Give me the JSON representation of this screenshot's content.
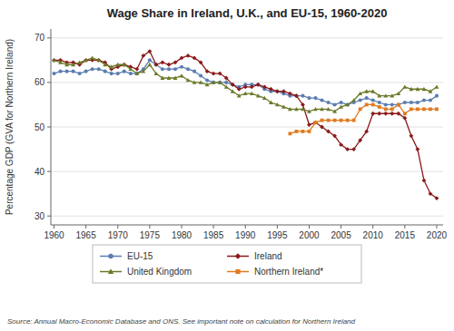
{
  "chart_data": {
    "type": "line",
    "title": "Wage Share in Ireland, U.K., and EU-15, 1960-2020",
    "y_label": "Percentage GDP (GVA for Northern Ireland)",
    "source": "Source: Annual Macro-Economic Database and ONS. See important note on calculation for Northern Ireland",
    "x": [
      1960,
      1961,
      1962,
      1963,
      1964,
      1965,
      1966,
      1967,
      1968,
      1969,
      1970,
      1971,
      1972,
      1973,
      1974,
      1975,
      1976,
      1977,
      1978,
      1979,
      1980,
      1981,
      1982,
      1983,
      1984,
      1985,
      1986,
      1987,
      1988,
      1989,
      1990,
      1991,
      1992,
      1993,
      1994,
      1995,
      1996,
      1997,
      1998,
      1999,
      2000,
      2001,
      2002,
      2003,
      2004,
      2005,
      2006,
      2007,
      2008,
      2009,
      2010,
      2011,
      2012,
      2013,
      2014,
      2015,
      2016,
      2017,
      2018,
      2019,
      2020
    ],
    "xlim": [
      1959.5,
      2021
    ],
    "xticks": [
      1960,
      1965,
      1970,
      1975,
      1980,
      1985,
      1990,
      1995,
      2000,
      2005,
      2010,
      2015,
      2020
    ],
    "ylim": [
      28,
      72
    ],
    "yticks": [
      30,
      40,
      50,
      60,
      70
    ],
    "grid": true,
    "legend": "bottom",
    "series": [
      {
        "name": "EU-15",
        "color": "#5b7db1",
        "marker": "circle",
        "values": [
          62,
          62.5,
          62.5,
          62.5,
          62,
          62.5,
          63,
          63,
          62.5,
          62,
          62,
          62.5,
          62,
          62,
          63,
          65,
          64,
          63,
          63,
          63,
          63.5,
          63,
          62.5,
          61.5,
          60.5,
          60,
          60,
          60,
          59.5,
          59,
          59.5,
          59.5,
          59.5,
          58.5,
          58,
          58,
          57.5,
          57,
          57,
          57,
          56.5,
          56.5,
          56,
          55.5,
          55,
          55.5,
          55,
          55.5,
          56,
          56.5,
          56,
          55.5,
          55,
          55,
          55,
          55.5,
          55.5,
          55.5,
          56,
          56,
          57
        ]
      },
      {
        "name": "Ireland",
        "color": "#8b1a1a",
        "marker": "diamond",
        "values": [
          65,
          65,
          64.5,
          64.5,
          64,
          65,
          65,
          65,
          64.5,
          63,
          63.5,
          64,
          63.5,
          63,
          66,
          67,
          64,
          64.5,
          64,
          64.5,
          65.5,
          66,
          65.5,
          64.5,
          62.5,
          62,
          62,
          61,
          59.5,
          58.5,
          59,
          59,
          59.5,
          59,
          58.5,
          58,
          58,
          57.5,
          57,
          55,
          50.5,
          51,
          50,
          49,
          48,
          46,
          45,
          45,
          47,
          49,
          53,
          53,
          53,
          53,
          53,
          52,
          48,
          45,
          38,
          35,
          34
        ]
      },
      {
        "name": "United Kingdom",
        "color": "#6b7a2a",
        "marker": "triangle",
        "values": [
          65,
          64.5,
          64,
          64,
          64.5,
          65,
          65.5,
          65,
          64,
          63.5,
          64,
          64,
          63,
          62,
          62.5,
          64,
          62,
          61,
          61,
          61,
          61.5,
          60.5,
          60,
          60,
          59.5,
          60,
          60,
          59,
          58,
          57,
          57.5,
          57.5,
          57,
          56.5,
          55.5,
          55,
          54.5,
          54,
          54,
          54,
          53.5,
          54,
          54,
          54,
          53.5,
          54.5,
          55,
          56,
          57.5,
          58,
          58,
          57,
          57,
          57,
          57.5,
          59,
          58.5,
          58.5,
          58.5,
          58,
          59
        ]
      },
      {
        "name": "Northern Ireland*",
        "color": "#e07b20",
        "marker": "square",
        "values": [
          null,
          null,
          null,
          null,
          null,
          null,
          null,
          null,
          null,
          null,
          null,
          null,
          null,
          null,
          null,
          null,
          null,
          null,
          null,
          null,
          null,
          null,
          null,
          null,
          null,
          null,
          null,
          null,
          null,
          null,
          null,
          null,
          null,
          null,
          null,
          null,
          null,
          48.5,
          49,
          49,
          49,
          51,
          51.5,
          51.5,
          51.5,
          51.5,
          51.5,
          51.5,
          54,
          55,
          55,
          54.5,
          54,
          54,
          55,
          53,
          54,
          54,
          54,
          54,
          54
        ]
      }
    ]
  }
}
